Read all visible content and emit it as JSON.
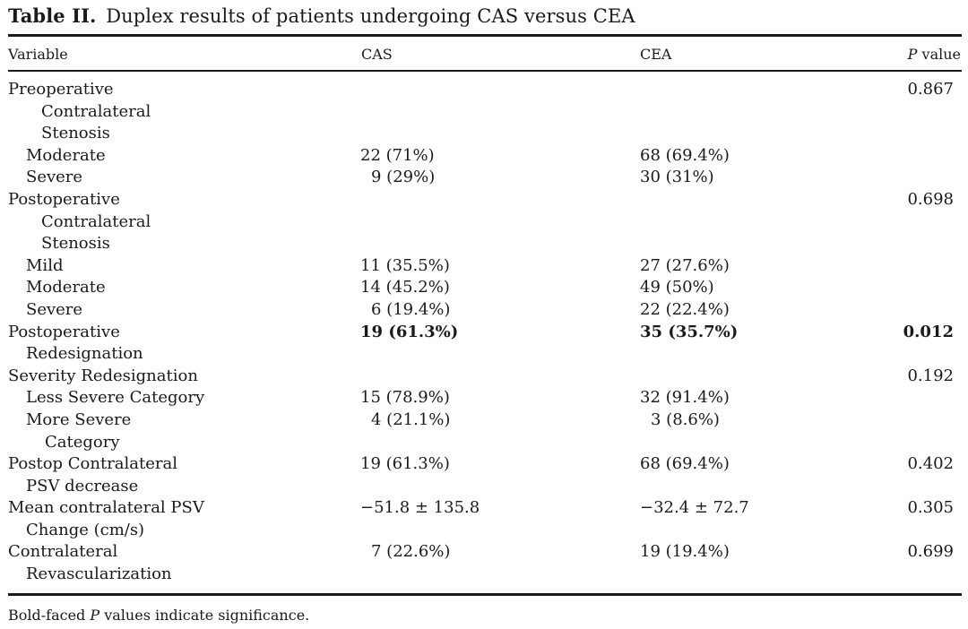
{
  "caption": {
    "label": "Table II.",
    "text": "Duplex results of patients undergoing CAS versus CEA"
  },
  "headers": {
    "variable": "Variable",
    "cas": "CAS",
    "cea": "CEA",
    "p_italic": "P",
    "p_rest": " value"
  },
  "rows": {
    "preop": {
      "label": "Preoperative",
      "p": "0.867"
    },
    "preop_contra": {
      "label": "Contralateral"
    },
    "preop_stenosis": {
      "label": "Stenosis"
    },
    "preop_moderate": {
      "label": "Moderate",
      "cas": "22 (71%)",
      "cea": "68 (69.4%)"
    },
    "preop_severe": {
      "label": "Severe",
      "cas": "9 (29%)",
      "cea": "30 (31%)"
    },
    "postop": {
      "label": "Postoperative",
      "p": "0.698"
    },
    "postop_contra": {
      "label": "Contralateral"
    },
    "postop_stenosis": {
      "label": "Stenosis"
    },
    "postop_mild": {
      "label": "Mild",
      "cas": "11 (35.5%)",
      "cea": "27 (27.6%)"
    },
    "postop_moderate": {
      "label": "Moderate",
      "cas": "14 (45.2%)",
      "cea": "49 (50%)"
    },
    "postop_severe": {
      "label": "Severe",
      "cas": "6 (19.4%)",
      "cea": "22 (22.4%)"
    },
    "redesig": {
      "label_1": "Postoperative",
      "label_2": "Redesignation",
      "cas": "19 (61.3%)",
      "cea": "35 (35.7%)",
      "p": "0.012"
    },
    "sev_redesig": {
      "label": "Severity Redesignation",
      "p": "0.192"
    },
    "less_severe": {
      "label": "Less Severe Category",
      "cas": "15 (78.9%)",
      "cea": "32 (91.4%)"
    },
    "more_severe": {
      "label_1": "More Severe",
      "label_2": "Category",
      "cas": "4 (21.1%)",
      "cea": "3 (8.6%)"
    },
    "psv_decrease": {
      "label_1": "Postop Contralateral",
      "label_2": "PSV decrease",
      "cas": "19 (61.3%)",
      "cea": "68 (69.4%)",
      "p": "0.402"
    },
    "mean_psv": {
      "label_1": "Mean contralateral PSV",
      "label_2": "Change (cm/s)",
      "cas": "−51.8 ± 135.8",
      "cea": "−32.4 ± 72.7",
      "p": "0.305"
    },
    "revasc": {
      "label_1": "Contralateral",
      "label_2": "Revascularization",
      "cas": "7 (22.6%)",
      "cea": "19 (19.4%)",
      "p": "0.699"
    }
  },
  "footnote": {
    "pre": "Bold-faced ",
    "italic": "P",
    "post": " values indicate significance."
  }
}
